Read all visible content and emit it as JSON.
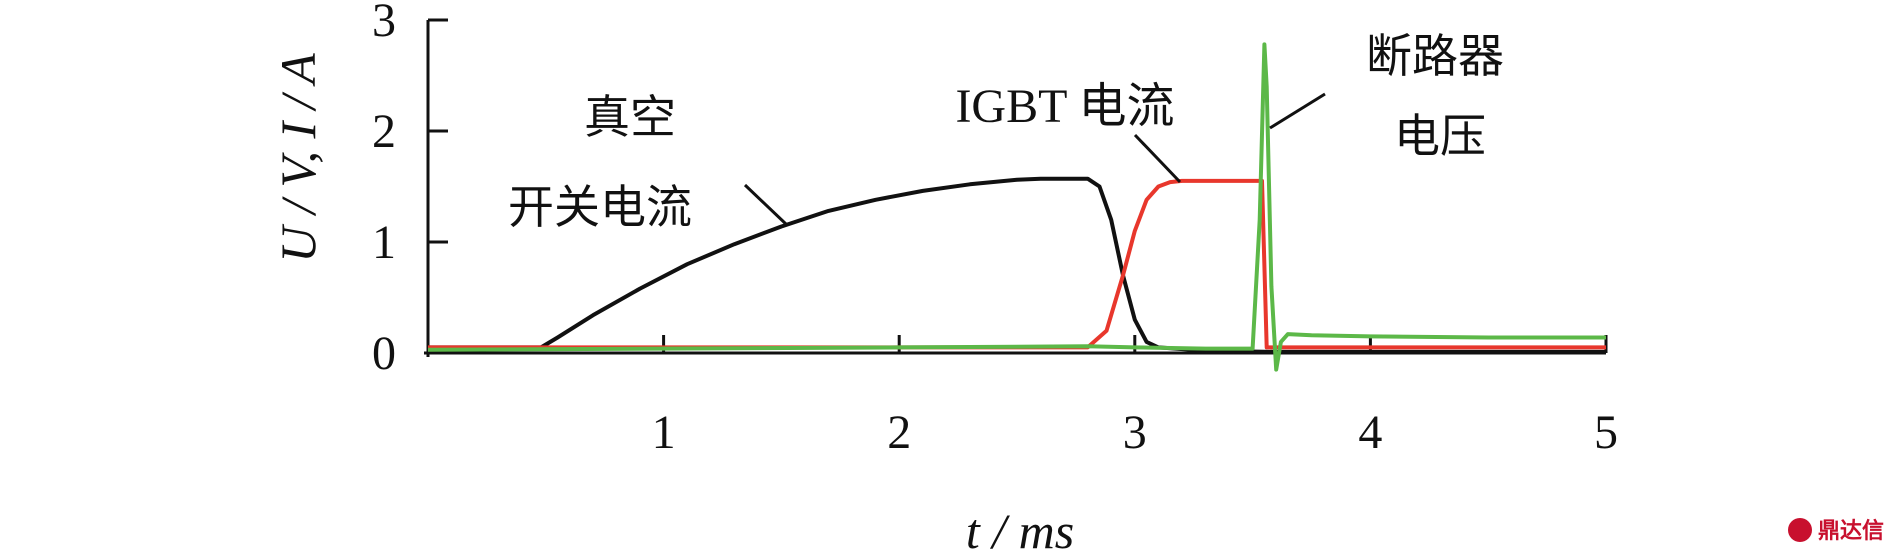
{
  "chart_data": {
    "type": "line",
    "xlabel": "t / ms",
    "ylabel": "U / V, I / A",
    "xlim": [
      0,
      5
    ],
    "ylim": [
      0,
      3
    ],
    "x_ticks": [
      "1",
      "2",
      "3",
      "4",
      "5"
    ],
    "y_ticks": [
      "0",
      "1",
      "2",
      "3"
    ],
    "grid": false,
    "series": [
      {
        "name": "真空开关电流",
        "color": "#111111",
        "x": [
          0,
          0.3,
          0.48,
          0.55,
          0.7,
          0.9,
          1.1,
          1.3,
          1.5,
          1.7,
          1.9,
          2.1,
          2.3,
          2.5,
          2.6,
          2.8,
          2.85,
          2.9,
          2.95,
          3.0,
          3.05,
          3.1,
          3.3,
          3.6,
          4.0,
          5.0
        ],
        "y": [
          0.05,
          0.05,
          0.05,
          0.14,
          0.34,
          0.58,
          0.8,
          0.98,
          1.14,
          1.28,
          1.38,
          1.46,
          1.52,
          1.56,
          1.57,
          1.57,
          1.5,
          1.2,
          0.7,
          0.3,
          0.1,
          0.05,
          0.02,
          0.01,
          0.01,
          0.01
        ]
      },
      {
        "name": "IGBT 电流",
        "color": "#e8372c",
        "x": [
          0,
          1.0,
          2.0,
          2.6,
          2.8,
          2.88,
          2.95,
          3.0,
          3.05,
          3.1,
          3.15,
          3.2,
          3.4,
          3.54,
          3.56,
          3.6,
          4.0,
          5.0
        ],
        "y": [
          0.05,
          0.05,
          0.05,
          0.05,
          0.05,
          0.2,
          0.7,
          1.1,
          1.38,
          1.5,
          1.54,
          1.55,
          1.55,
          1.55,
          0.05,
          0.05,
          0.05,
          0.05
        ]
      },
      {
        "name": "断路器电压",
        "color": "#5cb848",
        "x": [
          0,
          1.0,
          2.0,
          2.8,
          3.0,
          3.3,
          3.5,
          3.53,
          3.55,
          3.56,
          3.58,
          3.6,
          3.62,
          3.65,
          3.75,
          4.0,
          4.5,
          5.0
        ],
        "y": [
          0.03,
          0.04,
          0.05,
          0.06,
          0.05,
          0.04,
          0.04,
          1.2,
          2.78,
          2.4,
          0.6,
          -0.15,
          0.1,
          0.17,
          0.16,
          0.15,
          0.14,
          0.14
        ]
      }
    ],
    "annotations": [
      {
        "lines": [
          "真空",
          "开关电流"
        ],
        "target_series": 0
      },
      {
        "lines": [
          "IGBT 电流"
        ],
        "target_series": 1
      },
      {
        "lines": [
          "断路器",
          "电压"
        ],
        "target_series": 2
      }
    ]
  },
  "watermark": {
    "text": "鼎达信"
  }
}
